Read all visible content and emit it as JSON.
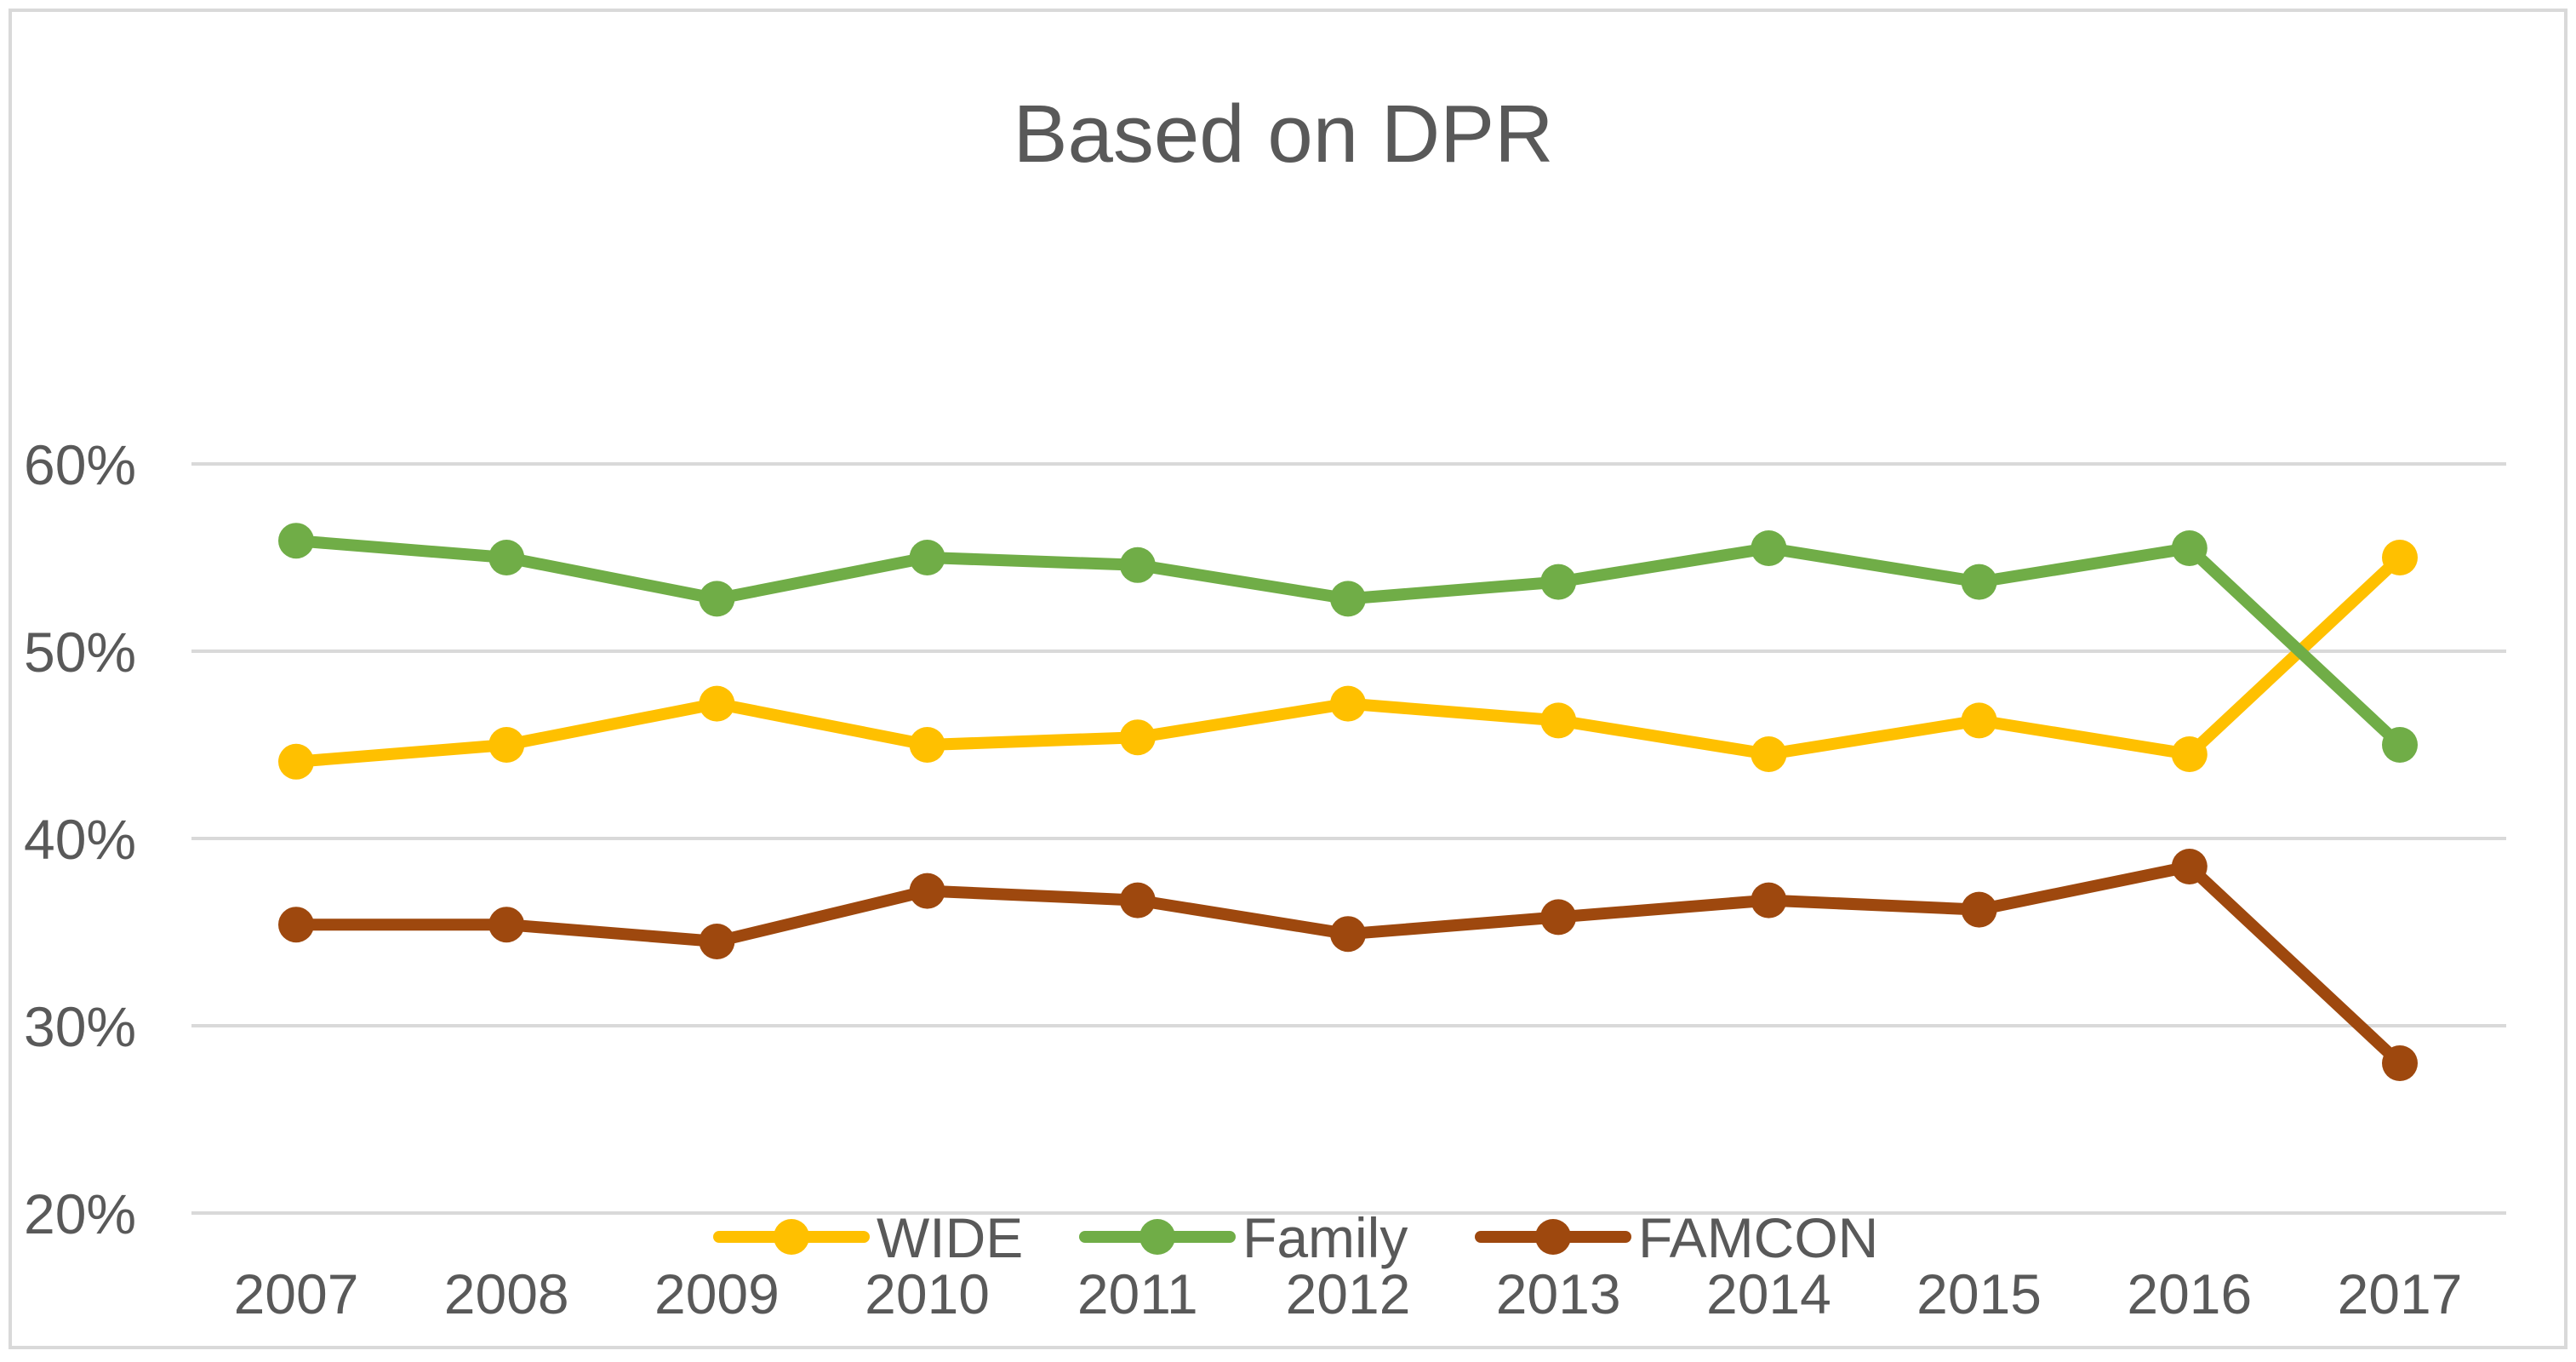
{
  "chart_data": {
    "type": "line",
    "title": "Based on DPR",
    "xlabel": "",
    "ylabel": "",
    "categories": [
      "2007",
      "2008",
      "2009",
      "2010",
      "2011",
      "2012",
      "2013",
      "2014",
      "2015",
      "2016",
      "2017"
    ],
    "y_ticks": [
      "20%",
      "30%",
      "40%",
      "50%",
      "60%"
    ],
    "y_tick_values": [
      20,
      30,
      40,
      50,
      60
    ],
    "ylim": [
      20,
      60
    ],
    "grid": true,
    "legend_position": "bottom",
    "series": [
      {
        "name": "WIDE",
        "color": "#FFC000",
        "values": [
          44.1,
          45.0,
          47.2,
          45.0,
          45.4,
          47.2,
          46.3,
          44.5,
          46.3,
          44.5,
          55.0
        ]
      },
      {
        "name": "Family",
        "color": "#70AD47",
        "values": [
          55.9,
          55.0,
          52.8,
          55.0,
          54.6,
          52.8,
          53.7,
          55.5,
          53.7,
          55.5,
          45.0
        ]
      },
      {
        "name": "FAMCON",
        "color": "#9E480E",
        "values": [
          35.4,
          35.4,
          34.5,
          37.2,
          36.7,
          34.9,
          35.8,
          36.7,
          36.2,
          38.5,
          28.0
        ]
      }
    ]
  },
  "colors": {
    "grid": "#D9D9D9",
    "border": "#D9D9D9",
    "text": "#595959"
  }
}
